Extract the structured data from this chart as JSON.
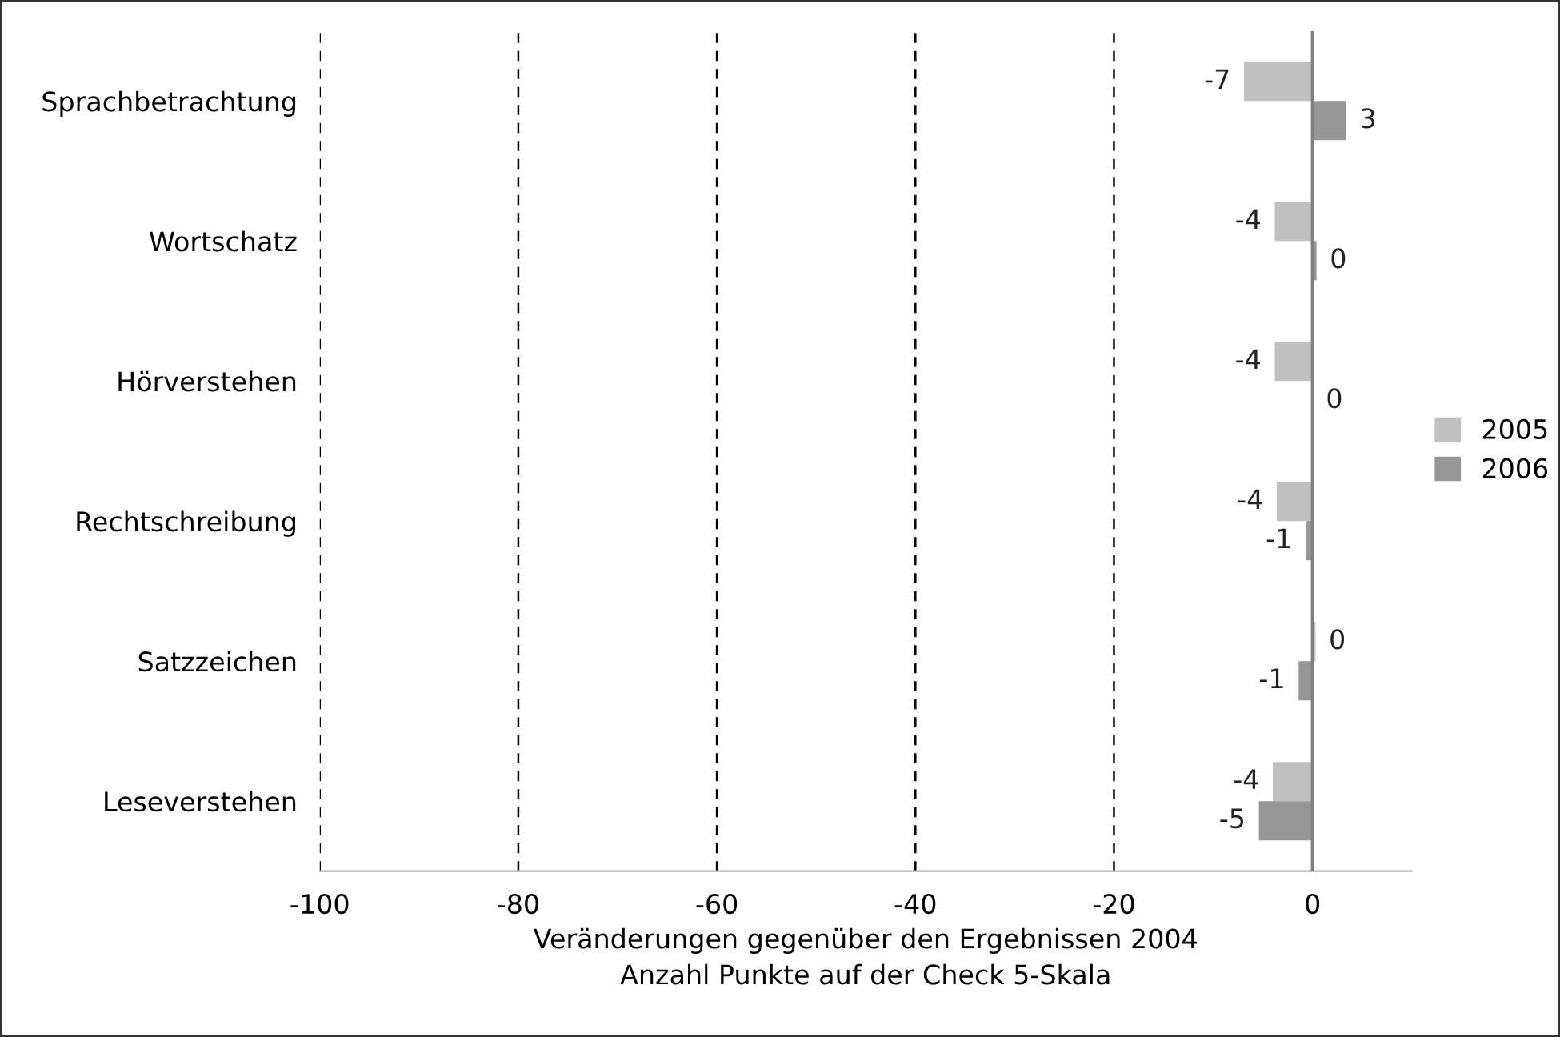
{
  "chart_data": {
    "type": "bar",
    "orientation": "horizontal",
    "categories": [
      "Sprachbetrachtung",
      "Wortschatz",
      "Hörverstehen",
      "Rechtschreibung",
      "Satzzeichen",
      "Leseverstehen"
    ],
    "series": [
      {
        "name": "2005",
        "color": "#c0c0c0",
        "values": [
          -6.9,
          -3.8,
          -3.8,
          -3.6,
          0.3,
          -4.0
        ],
        "value_labels": [
          "-7",
          "-4",
          "-4",
          "-4",
          "0",
          "-4"
        ]
      },
      {
        "name": "2006",
        "color": "#969696",
        "values": [
          3.4,
          0.4,
          0,
          -0.7,
          -1.4,
          -5.4
        ],
        "value_labels": [
          "3",
          "0",
          "0",
          "-1",
          "-1",
          "-5"
        ]
      }
    ],
    "xlim": [
      -100,
      10
    ],
    "xticks": [
      -100,
      -80,
      -60,
      -40,
      -20,
      0
    ],
    "xlabel": "Veränderungen gegenüber den Ergebnissen 2004\nAnzahl Punkte auf der Check 5-Skala",
    "ref_lines": [
      {
        "axis": "x",
        "value": 0,
        "label": null,
        "color": "#808080",
        "line_style": "solid"
      }
    ],
    "grid": "x",
    "legend": "right"
  }
}
